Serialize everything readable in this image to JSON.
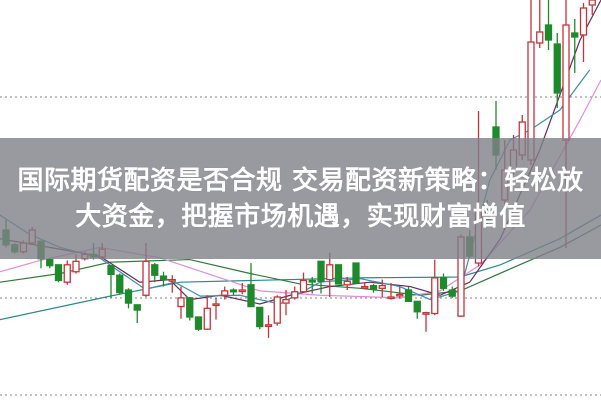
{
  "headline": "国际期货配资是否合规 交易配资新策略：轻松放大资金，把握市场机遇，实现财富增值",
  "colors": {
    "up": "#c8333a",
    "down": "#1f8a2c",
    "banner": "#8a8a92",
    "grid": "#9a9a9a"
  },
  "chart_data": {
    "type": "candlestick",
    "grid": "dotted horizontal",
    "grid_levels": [
      30.3,
      10.2,
      0.5
    ],
    "candles": [
      [
        0,
        17.0,
        18.0,
        15.0,
        15.3
      ],
      [
        1,
        15.3,
        15.5,
        14.3,
        14.5
      ],
      [
        2,
        14.5,
        15.8,
        14.3,
        15.5
      ],
      [
        3,
        15.5,
        17.3,
        15.3,
        17.0
      ],
      [
        4,
        15.7,
        15.8,
        12.6,
        13.7
      ],
      [
        5,
        13.6,
        13.8,
        12.6,
        12.9
      ],
      [
        6,
        13.0,
        13.0,
        11.0,
        11.2
      ],
      [
        7,
        11.0,
        13.5,
        10.7,
        13.0
      ],
      [
        8,
        12.2,
        14.2,
        12.0,
        13.4
      ],
      [
        9,
        13.7,
        14.5,
        13.5,
        14.2
      ],
      [
        10,
        14.2,
        15.5,
        13.6,
        13.9
      ],
      [
        11,
        13.9,
        15.5,
        13.8,
        14.8
      ],
      [
        12,
        12.9,
        12.9,
        9.2,
        11.9
      ],
      [
        13,
        11.8,
        12.0,
        9.6,
        9.8
      ],
      [
        14,
        10.1,
        10.3,
        8.0,
        8.6
      ],
      [
        15,
        8.4,
        8.4,
        6.3,
        7.8
      ],
      [
        16,
        9.5,
        15.5,
        9.3,
        13.4
      ],
      [
        17,
        13.0,
        13.2,
        11.0,
        11.8
      ],
      [
        18,
        11.7,
        12.2,
        10.5,
        11.3
      ],
      [
        19,
        11.2,
        11.8,
        9.8,
        11.3
      ],
      [
        20,
        8.2,
        10.5,
        6.8,
        9.2
      ],
      [
        21,
        9.2,
        9.3,
        6.6,
        7.0
      ],
      [
        22,
        7.0,
        7.0,
        5.4,
        5.6
      ],
      [
        23,
        5.6,
        9.5,
        5.5,
        8.0
      ],
      [
        24,
        8.4,
        9.2,
        6.7,
        8.5
      ],
      [
        25,
        9.5,
        10.5,
        9.0,
        10.0
      ],
      [
        26,
        10.1,
        10.3,
        9.5,
        9.9
      ],
      [
        27,
        10.0,
        10.9,
        9.6,
        10.1
      ],
      [
        28,
        10.7,
        13.2,
        8.2,
        8.2
      ],
      [
        29,
        8.1,
        8.1,
        5.6,
        5.9
      ],
      [
        30,
        6.0,
        7.2,
        4.6,
        6.1
      ],
      [
        31,
        6.3,
        9.5,
        6.0,
        9.3
      ],
      [
        32,
        8.6,
        10.1,
        7.2,
        9.0
      ],
      [
        33,
        9.2,
        10.5,
        9.0,
        9.9
      ],
      [
        34,
        9.9,
        12.1,
        9.9,
        11.2
      ],
      [
        35,
        11.2,
        11.6,
        9.7,
        11.1
      ],
      [
        36,
        13.4,
        13.4,
        9.7,
        11.1
      ],
      [
        37,
        11.3,
        14.4,
        9.3,
        13.0
      ],
      [
        38,
        13.0,
        13.0,
        10.8,
        10.8
      ],
      [
        39,
        10.7,
        11.6,
        10.1,
        11.1
      ],
      [
        40,
        13.2,
        13.2,
        10.9,
        10.9
      ],
      [
        41,
        10.4,
        11.0,
        10.2,
        10.5
      ],
      [
        42,
        10.6,
        10.8,
        9.8,
        10.2
      ],
      [
        43,
        10.3,
        11.3,
        9.3,
        10.6
      ],
      [
        44,
        9.2,
        10.9,
        9.0,
        9.3
      ],
      [
        45,
        9.5,
        10.5,
        9.1,
        9.6
      ],
      [
        46,
        10.1,
        10.5,
        8.8,
        8.8
      ],
      [
        47,
        8.8,
        8.8,
        6.8,
        7.6
      ],
      [
        48,
        7.4,
        7.6,
        5.3,
        7.5
      ],
      [
        49,
        7.4,
        13.6,
        7.2,
        11.5
      ],
      [
        50,
        11.5,
        12.0,
        10.0,
        10.3
      ],
      [
        51,
        10.1,
        10.5,
        9.2,
        9.4
      ],
      [
        52,
        7.1,
        16.5,
        7.0,
        16.2
      ],
      [
        53,
        16.2,
        17.0,
        13.8,
        14.0
      ],
      [
        54,
        13.2,
        28.9,
        12.8,
        18.9
      ],
      [
        55,
        19.1,
        20.0,
        17.5,
        18.0
      ],
      [
        56,
        27.3,
        29.9,
        23.0,
        24.5
      ],
      [
        57,
        20.0,
        26.0,
        19.0,
        23.0
      ],
      [
        58,
        23.0,
        26.5,
        22.5,
        25.0
      ],
      [
        59,
        24.5,
        28.5,
        24.0,
        27.8
      ],
      [
        60,
        24.0,
        40.0,
        23.5,
        35.8
      ],
      [
        61,
        35.7,
        40.0,
        35.2,
        36.8
      ],
      [
        62,
        37.5,
        40.0,
        35.0,
        36.0
      ],
      [
        63,
        35.6,
        36.7,
        29.2,
        30.7
      ],
      [
        64,
        26.0,
        40.0,
        14.9,
        37.5
      ],
      [
        65,
        36.7,
        38.1,
        32.7,
        36.3
      ],
      [
        66,
        36.5,
        39.7,
        33.8,
        39.2
      ],
      [
        67,
        39.5,
        40.0,
        38.5,
        40.0
      ]
    ],
    "moving_averages": [
      {
        "color": "#2a8a8a",
        "points": [
          [
            -0.7,
            6.7
          ],
          [
            11.9,
            9.4
          ],
          [
            19.9,
            11.0
          ],
          [
            40.5,
            11.5
          ],
          [
            51.9,
            11.6
          ],
          [
            56.5,
            13.0
          ],
          [
            63.3,
            16.0
          ],
          [
            68,
            18.5
          ]
        ]
      },
      {
        "color": "#2f7a3a",
        "points": [
          [
            -0.7,
            11.0
          ],
          [
            6.2,
            12.0
          ],
          [
            11.9,
            13.3
          ],
          [
            21,
            13.6
          ],
          [
            27.9,
            12.0
          ],
          [
            33.6,
            10.8
          ],
          [
            40.5,
            10.3
          ],
          [
            47.3,
            9.5
          ],
          [
            51.9,
            10.0
          ],
          [
            58.7,
            13.0
          ],
          [
            63.3,
            15.0
          ],
          [
            68,
            17.5
          ]
        ]
      },
      {
        "color": "#e48ae0",
        "points": [
          [
            -0.7,
            12.2
          ],
          [
            3.9,
            13.5
          ],
          [
            10.7,
            15.0
          ],
          [
            17.6,
            13.8
          ],
          [
            29,
            10.0
          ],
          [
            35.9,
            9.5
          ],
          [
            45,
            9.2
          ],
          [
            49.6,
            10.0
          ],
          [
            54.2,
            13.0
          ],
          [
            59.9,
            19.0
          ],
          [
            65.6,
            28.0
          ],
          [
            68,
            32.0
          ]
        ]
      },
      {
        "color": "#6a2a5a",
        "points": [
          [
            -0.7,
            16.0
          ],
          [
            10.7,
            14.0
          ],
          [
            15.3,
            11.0
          ],
          [
            18.7,
            11.3
          ],
          [
            21,
            9.0
          ],
          [
            24.5,
            9.5
          ],
          [
            29,
            8.5
          ],
          [
            32.5,
            9.5
          ],
          [
            37,
            10.5
          ],
          [
            41.6,
            11.0
          ],
          [
            46.2,
            10.5
          ],
          [
            49.6,
            9.5
          ],
          [
            53,
            11.0
          ],
          [
            56.5,
            16.0
          ],
          [
            61,
            25.0
          ],
          [
            65.6,
            36.0
          ],
          [
            68,
            40.0
          ]
        ]
      },
      {
        "color": "#3a8fb0",
        "points": [
          [
            -0.7,
            18.5
          ],
          [
            2.7,
            16.5
          ],
          [
            6.2,
            15.0
          ],
          [
            10.7,
            13.8
          ],
          [
            15.9,
            10.2
          ],
          [
            19.3,
            11.0
          ],
          [
            22.2,
            9.4
          ],
          [
            26.7,
            9.5
          ],
          [
            31.3,
            8.5
          ],
          [
            35.9,
            11.0
          ],
          [
            40.5,
            11.4
          ],
          [
            45,
            10.5
          ],
          [
            48.5,
            9.0
          ],
          [
            51.9,
            10.0
          ],
          [
            55.3,
            22.0
          ],
          [
            57.6,
            26.0
          ],
          [
            59.9,
            27.0
          ],
          [
            63.3,
            29.0
          ],
          [
            66.7,
            33.0
          ]
        ]
      }
    ]
  }
}
